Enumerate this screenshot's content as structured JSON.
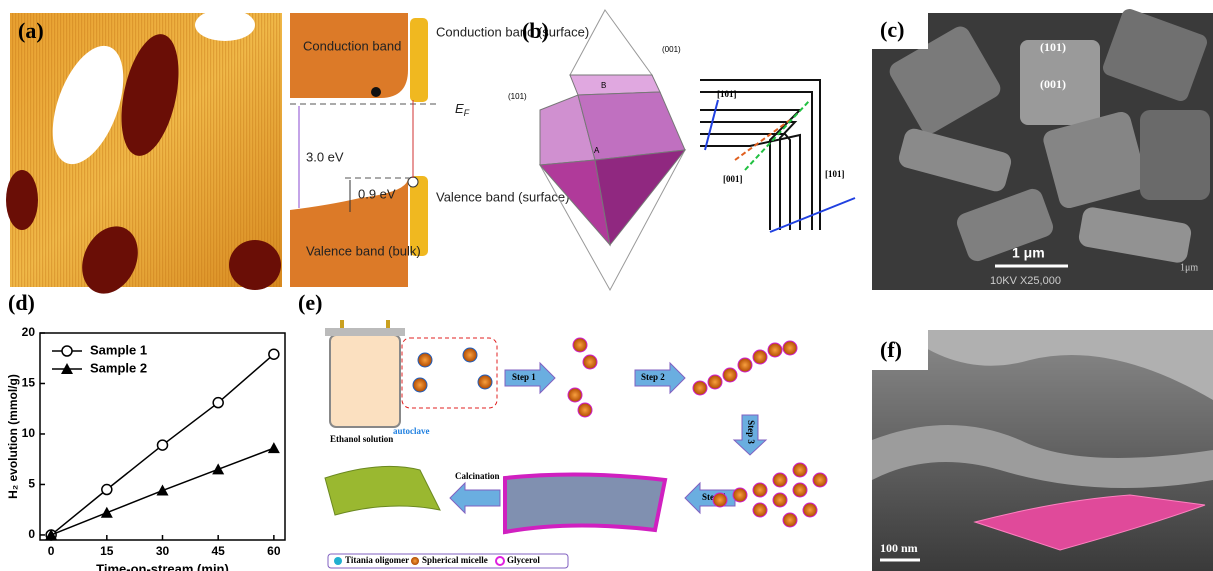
{
  "panels": {
    "a": {
      "label": "(a)",
      "conduction": "Conduction band",
      "conduction_surface": "Conduction band (surface)",
      "fermi": {
        "main": "E",
        "sub": "F"
      },
      "gap": "3.0 eV",
      "bending": "0.9 eV",
      "valence_surface": "Valence band (surface)",
      "valence_bulk": "Valence band (bulk)"
    },
    "b": {
      "label": "(b)",
      "facet_top": "(001)",
      "facet_side": "(101)",
      "point_b": "B",
      "point_a": "A",
      "dir_1": "[101]",
      "dir_2": "[001]",
      "dir_3": "[101]"
    },
    "c": {
      "label": "(c)",
      "facet_101": "(101)",
      "facet_001": "(001)",
      "scale": "1 μm",
      "scale_inst": "1μm",
      "info": "10KV  X25,000"
    },
    "e": {
      "label": "(e)",
      "solution": "Ethanol solution",
      "autoclave": "autoclave",
      "step1": "Step 1",
      "step2": "Step 2",
      "step3": "Step 3",
      "step4": "Step 4",
      "calcination": "Calcination",
      "legend": [
        "Titania oligomer",
        "Spherical micelle",
        "Glycerol"
      ]
    },
    "f": {
      "label": "(f)",
      "scale": "100 nm"
    }
  },
  "chart_data": {
    "type": "line",
    "label": "(d)",
    "x_label": "Time-on-stream (min)",
    "y_label": "H₂ evolution (mmol/g)",
    "x": [
      0,
      15,
      30,
      45,
      60
    ],
    "series": [
      {
        "name": "Sample 1",
        "color": "#000000",
        "marker": "circle",
        "values": [
          0,
          4.5,
          8.9,
          13.1,
          17.9
        ]
      },
      {
        "name": "Sample 2",
        "color": "#000000",
        "marker": "triangle",
        "values": [
          0,
          2.2,
          4.4,
          6.5,
          8.6
        ]
      }
    ],
    "xlim": [
      -3,
      63
    ],
    "xticks": [
      0,
      15,
      30,
      45,
      60
    ],
    "ylim": [
      -0.5,
      20
    ],
    "yticks": [
      0,
      5,
      10,
      15,
      20
    ],
    "legend": "upper left"
  }
}
